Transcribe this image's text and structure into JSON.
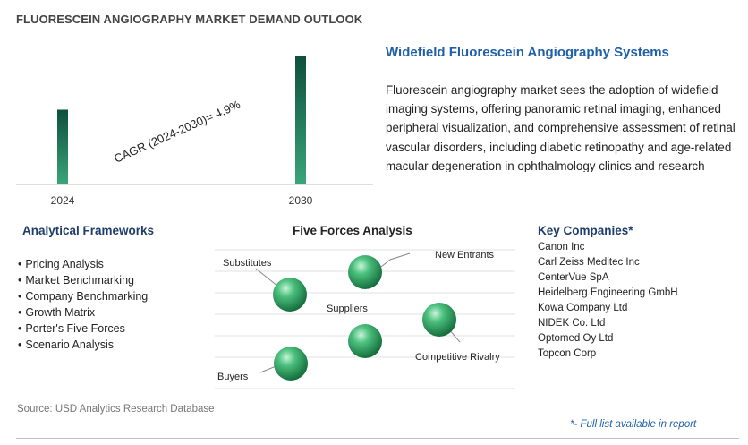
{
  "header": {
    "title": "FLUORESCEIN ANGIOGRAPHY MARKET DEMAND OUTLOOK"
  },
  "chart_data": {
    "type": "bar",
    "categories": [
      "2024",
      "2030"
    ],
    "values": [
      0.58,
      1.0
    ],
    "annotation": "CAGR (2024-2030)=   4.9%",
    "colors": {
      "bar_top": "#0f4f3c",
      "bar_bottom": "#3aa57b"
    }
  },
  "right_panel": {
    "title": "Widefield Fluorescein Angiography Systems",
    "description": "Fluorescein angiography market sees the adoption of widefield imaging systems, offering panoramic retinal imaging, enhanced peripheral visualization, and comprehensive assessment of retinal vascular disorders, including diabetic retinopathy and age-related macular degeneration in ophthalmology clinics and research centers worldwide."
  },
  "analytical_frameworks": {
    "title": "Analytical Frameworks",
    "items": [
      "Pricing Analysis",
      "Market Benchmarking",
      "Company Benchmarking",
      "Growth Matrix",
      "Porter's Five Forces",
      "Scenario Analysis"
    ]
  },
  "five_forces": {
    "title": "Five Forces Analysis",
    "labels": {
      "substitutes": "Substitutes",
      "new_entrants": "New Entrants",
      "suppliers": "Suppliers",
      "competitive_rivalry": "Competitive Rivalry",
      "buyers": "Buyers"
    },
    "ball_color": "#2e9b5e"
  },
  "key_companies": {
    "title": "Key Companies*",
    "items": [
      "Canon Inc",
      "Carl Zeiss Meditec Inc",
      "CenterVue SpA",
      "Heidelberg Engineering GmbH",
      "Kowa Company Ltd",
      "NIDEK Co. Ltd",
      "Optomed Oy Ltd",
      "Topcon Corp"
    ]
  },
  "footer": {
    "source": "Source: USD Analytics Research Database",
    "footnote": "*- Full list available in report"
  }
}
